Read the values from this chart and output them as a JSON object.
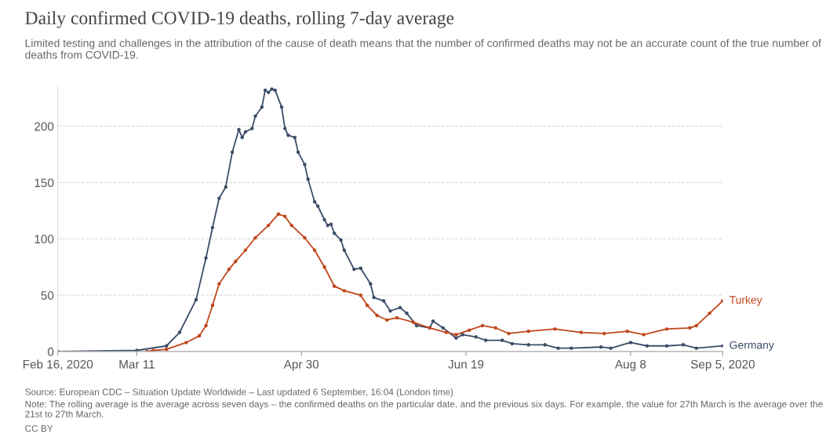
{
  "chart_data": {
    "type": "line",
    "title": "Daily confirmed COVID-19 deaths, rolling 7-day average",
    "subtitle": "Limited testing and challenges in the attribution of the cause of death means that the number of confirmed deaths may not be an accurate count of the true number of deaths from COVID-19.",
    "series": [
      {
        "name": "Germany",
        "color": "#3b4d68",
        "x": [
          "2020-02-16",
          "2020-03-11",
          "2020-03-20",
          "2020-03-24",
          "2020-03-29",
          "2020-04-01",
          "2020-04-03",
          "2020-04-05",
          "2020-04-07",
          "2020-04-09",
          "2020-04-11",
          "2020-04-12",
          "2020-04-13",
          "2020-04-15",
          "2020-04-16",
          "2020-04-18",
          "2020-04-19",
          "2020-04-20",
          "2020-04-21",
          "2020-04-22",
          "2020-04-24",
          "2020-04-25",
          "2020-04-26",
          "2020-04-28",
          "2020-04-29",
          "2020-05-01",
          "2020-05-02",
          "2020-05-04",
          "2020-05-05",
          "2020-05-07",
          "2020-05-08",
          "2020-05-09",
          "2020-05-10",
          "2020-05-12",
          "2020-05-13",
          "2020-05-16",
          "2020-05-18",
          "2020-05-21",
          "2020-05-22",
          "2020-05-25",
          "2020-05-27",
          "2020-05-30",
          "2020-06-01",
          "2020-06-04",
          "2020-06-08",
          "2020-06-09",
          "2020-06-12",
          "2020-06-16",
          "2020-06-18",
          "2020-06-22",
          "2020-06-25",
          "2020-06-30",
          "2020-07-03",
          "2020-07-08",
          "2020-07-13",
          "2020-07-17",
          "2020-07-21",
          "2020-07-30",
          "2020-08-02",
          "2020-08-08",
          "2020-08-13",
          "2020-08-19",
          "2020-08-24",
          "2020-08-28",
          "2020-09-05"
        ],
        "values": [
          0,
          1,
          5,
          17,
          46,
          83,
          110,
          136,
          146,
          177,
          197,
          190,
          195,
          198,
          209,
          217,
          232,
          230,
          233,
          232,
          217,
          198,
          192,
          190,
          177,
          166,
          153,
          133,
          129,
          117,
          112,
          113,
          105,
          99,
          90,
          73,
          74,
          60,
          48,
          45,
          36,
          39,
          34,
          23,
          21,
          27,
          21,
          12,
          15,
          13,
          10,
          10,
          7,
          6,
          6,
          3,
          3,
          4,
          3,
          8,
          5,
          5,
          6,
          3,
          5
        ]
      },
      {
        "name": "Turkey",
        "color": "#c0461b",
        "x": [
          "2020-03-14",
          "2020-03-16",
          "2020-03-20",
          "2020-03-26",
          "2020-03-30",
          "2020-04-01",
          "2020-04-03",
          "2020-04-05",
          "2020-04-08",
          "2020-04-10",
          "2020-04-13",
          "2020-04-16",
          "2020-04-20",
          "2020-04-23",
          "2020-04-25",
          "2020-04-27",
          "2020-05-01",
          "2020-05-04",
          "2020-05-07",
          "2020-05-10",
          "2020-05-13",
          "2020-05-18",
          "2020-05-20",
          "2020-05-23",
          "2020-05-26",
          "2020-05-29",
          "2020-06-03",
          "2020-06-08",
          "2020-06-13",
          "2020-06-16",
          "2020-06-20",
          "2020-06-24",
          "2020-06-28",
          "2020-07-02",
          "2020-07-08",
          "2020-07-16",
          "2020-07-24",
          "2020-07-31",
          "2020-08-07",
          "2020-08-12",
          "2020-08-19",
          "2020-08-26",
          "2020-08-28",
          "2020-09-01",
          "2020-09-05"
        ],
        "values": [
          0,
          1,
          2,
          8,
          14,
          23,
          41,
          60,
          73,
          80,
          90,
          101,
          112,
          122,
          120,
          112,
          101,
          90,
          75,
          58,
          54,
          50,
          41,
          32,
          28,
          30,
          26,
          21,
          17,
          15,
          19,
          23,
          21,
          16,
          18,
          20,
          17,
          16,
          18,
          15,
          20,
          21,
          23,
          34,
          45
        ]
      }
    ],
    "xlim": [
      "2020-02-16",
      "2020-09-05"
    ],
    "xticks": [
      {
        "value": "2020-02-16",
        "label": "Feb 16, 2020"
      },
      {
        "value": "2020-03-11",
        "label": "Mar 11"
      },
      {
        "value": "2020-04-30",
        "label": "Apr 30"
      },
      {
        "value": "2020-06-19",
        "label": "Jun 19"
      },
      {
        "value": "2020-08-08",
        "label": "Aug 8"
      },
      {
        "value": "2020-09-05",
        "label": "Sep 5, 2020"
      }
    ],
    "ylim": [
      0,
      235
    ],
    "yticks": [
      0,
      50,
      100,
      150,
      200
    ],
    "grid": "y",
    "legend": false,
    "marker": "circle",
    "line_style": "solid",
    "annotations": [
      "Source: European CDC – Situation Update Worldwide – Last updated 6 September, 16:04 (London time)",
      "Note: The rolling average is the average across seven days – the confirmed deaths on the particular date, and the previous six days. For example, the value for 27th March is the average over the 21st to 27th March.",
      "CC BY"
    ]
  }
}
